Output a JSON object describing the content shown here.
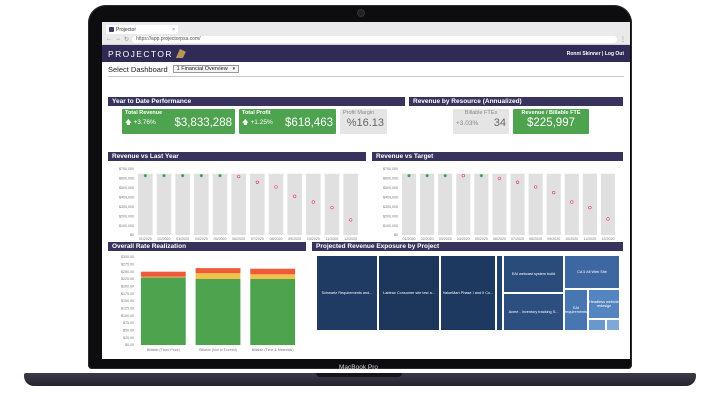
{
  "device": {
    "model_label": "MacBook Pro"
  },
  "browser": {
    "tab_title": "Projector",
    "url": "https://app.projectorpsa.com/"
  },
  "app": {
    "logo_text": "PROJECTOR",
    "user": "Ronni Skinner | Log Out",
    "select_dashboard_label": "Select Dashboard",
    "dashboard_value": "1 Financial Overview"
  },
  "ytd": {
    "title": "Year to Date Performance",
    "total_revenue": {
      "label": "Total Revenue",
      "change": "+3.76%",
      "value": "$3,833,288"
    },
    "total_profit": {
      "label": "Total Profit",
      "change": "+1.25%",
      "value": "$618,463"
    },
    "profit_margin": {
      "label": "Profit Margin",
      "value": "%16.13"
    }
  },
  "resource": {
    "title": "Revenue by Resource (Annualized)",
    "billable_ftes": {
      "label": "Billable FTEs",
      "change": "+3.03%",
      "value": "34"
    },
    "rev_per_fte": {
      "label": "Revenue / Billable FTE",
      "value": "$225,997"
    }
  },
  "colors": {
    "header": "#2f2a56",
    "panel_title": "#38335c",
    "green": "#4ea34f",
    "red_dot": "#e0334a",
    "green_dot": "#3aa050",
    "bar": "#e0e0e0"
  },
  "chart_data": [
    {
      "type": "bar",
      "title": "Revenue vs Last Year",
      "yticks": [
        "$700,000",
        "$600,000",
        "$500,000",
        "$400,000",
        "$300,000",
        "$200,000",
        "$100,000",
        "$0"
      ],
      "categories": [
        "01/2020",
        "02/2020",
        "03/2020",
        "04/2020",
        "05/2020",
        "06/2020",
        "07/2020",
        "08/2020",
        "09/2020",
        "10/2020",
        "11/2020",
        "12/2020"
      ],
      "ylim": [
        0,
        700000
      ],
      "values": [
        650000,
        650000,
        650000,
        650000,
        650000,
        650000,
        650000,
        650000,
        650000,
        650000,
        650000,
        650000
      ],
      "markers": [
        {
          "value": 630000,
          "status": "green"
        },
        {
          "value": 630000,
          "status": "green"
        },
        {
          "value": 630000,
          "status": "green"
        },
        {
          "value": 630000,
          "status": "green"
        },
        {
          "value": 630000,
          "status": "green"
        },
        {
          "value": 620000,
          "status": "red"
        },
        {
          "value": 560000,
          "status": "red"
        },
        {
          "value": 510000,
          "status": "red"
        },
        {
          "value": 410000,
          "status": "red"
        },
        {
          "value": 350000,
          "status": "red"
        },
        {
          "value": 290000,
          "status": "red"
        },
        {
          "value": 160000,
          "status": "red"
        }
      ]
    },
    {
      "type": "bar",
      "title": "Revenue vs Target",
      "yticks": [
        "$700,000",
        "$600,000",
        "$500,000",
        "$400,000",
        "$300,000",
        "$200,000",
        "$100,000",
        "$0"
      ],
      "categories": [
        "01/2020",
        "02/2020",
        "03/2020",
        "04/2020",
        "05/2020",
        "06/2020",
        "07/2020",
        "08/2020",
        "09/2020",
        "10/2020",
        "11/2020",
        "12/2020"
      ],
      "ylim": [
        0,
        700000
      ],
      "values": [
        650000,
        650000,
        650000,
        650000,
        650000,
        650000,
        650000,
        650000,
        650000,
        650000,
        650000,
        650000
      ],
      "markers": [
        {
          "value": 630000,
          "status": "green"
        },
        {
          "value": 630000,
          "status": "green"
        },
        {
          "value": 630000,
          "status": "green"
        },
        {
          "value": 630000,
          "status": "red"
        },
        {
          "value": 630000,
          "status": "green"
        },
        {
          "value": 600000,
          "status": "red"
        },
        {
          "value": 560000,
          "status": "red"
        },
        {
          "value": 510000,
          "status": "red"
        },
        {
          "value": 450000,
          "status": "red"
        },
        {
          "value": 350000,
          "status": "red"
        },
        {
          "value": 290000,
          "status": "red"
        },
        {
          "value": 170000,
          "status": "red"
        }
      ]
    },
    {
      "type": "bar",
      "stacked": true,
      "title": "Overall Rate Realization",
      "yticks": [
        "$300.00",
        "$275.00",
        "$250.00",
        "$225.00",
        "$200.00",
        "$175.00",
        "$150.00",
        "$125.00",
        "$100.00",
        "$75.00",
        "$50.00",
        "$25.00",
        "$0.00"
      ],
      "ylim": [
        0,
        300
      ],
      "categories": [
        "Billable (Fixed Price)",
        "Billable (Not to Exceed)",
        "Billable (Time & Materials)"
      ],
      "series": [
        {
          "color": "#4ea34f",
          "values": [
            230,
            225,
            225
          ]
        },
        {
          "color": "#f2c14a",
          "values": [
            3,
            20,
            16
          ]
        },
        {
          "color": "#ef5a3a",
          "values": [
            17,
            17,
            19
          ]
        }
      ]
    }
  ],
  "treemap": {
    "title": "Projected Revenue Exposure by Project",
    "tiles": [
      {
        "label": "Schwartz Requirements and...",
        "color": "#1f3b63"
      },
      {
        "label": "Labtrax Consumer site test a...",
        "color": "#1c365c"
      },
      {
        "label": "ValueMart Phase I and II Co...",
        "color": "#1d3960"
      },
      {
        "label": "",
        "color": "#21406a"
      },
      {
        "label": "EAI webcast system build",
        "color": "#2a4c7b"
      },
      {
        "label": "Acme - Inventory tracking S...",
        "color": "#2c4f80"
      },
      {
        "label": "CA 5 All Web Site",
        "color": "#3c67a0"
      },
      {
        "label": "EAI requirements",
        "color": "#4876b0"
      },
      {
        "label": "Headless website redesign",
        "color": "#5585c0"
      },
      {
        "label": "",
        "color": "#6a97cc"
      },
      {
        "label": "",
        "color": "#7fa8d6"
      }
    ]
  }
}
